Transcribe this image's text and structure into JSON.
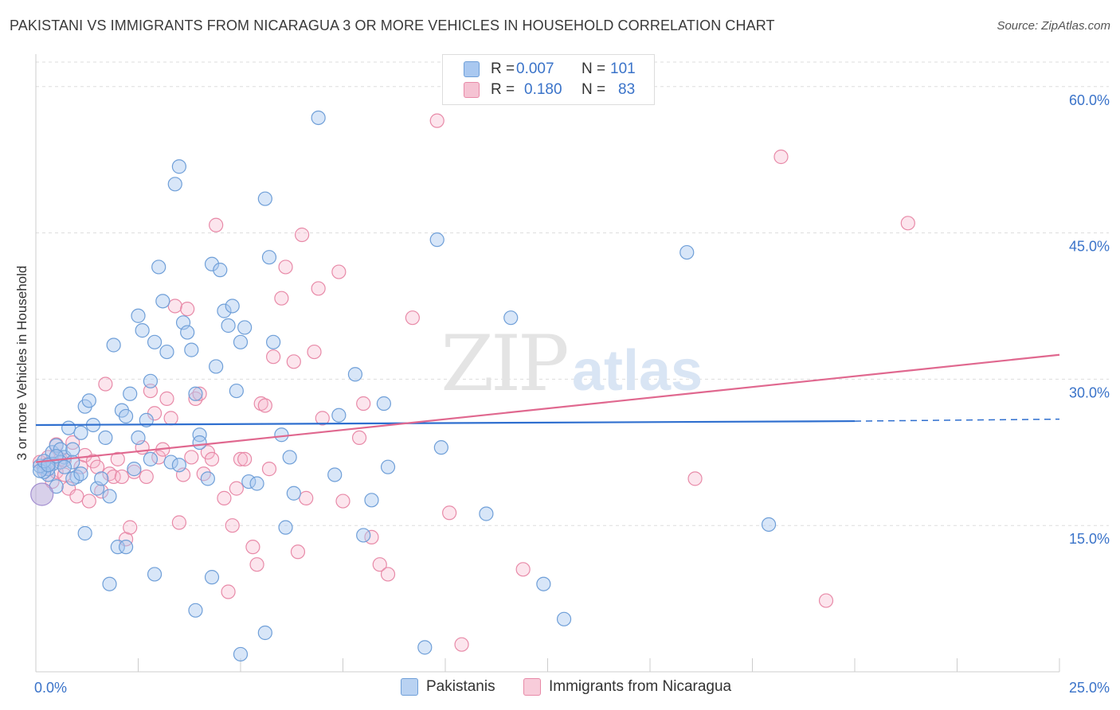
{
  "title": "PAKISTANI VS IMMIGRANTS FROM NICARAGUA 3 OR MORE VEHICLES IN HOUSEHOLD CORRELATION CHART",
  "source": "Source: ZipAtlas.com",
  "watermark": {
    "zip": "ZIP",
    "atlas": "atlas"
  },
  "legend_top": [
    {
      "r_label": "R =",
      "r_value": "0.007",
      "n_label": "N =",
      "n_value": "101"
    },
    {
      "r_label": "R =",
      "r_value": "0.180",
      "n_label": "N =",
      "n_value": "83"
    }
  ],
  "legend_bottom": [
    "Pakistanis",
    "Immigrants from Nicaragua"
  ],
  "colors": {
    "blue_fill": "#a9c8f0",
    "blue_stroke": "#6f9fd8",
    "blue_line": "#2f6fcf",
    "pink_fill": "#f5b5ca",
    "pink_stroke": "#e88aa8",
    "pink_line": "#e0688f",
    "tick_text": "#3a73c9",
    "grid": "#dddddd"
  },
  "chart_data": {
    "type": "scatter",
    "title": "PAKISTANI VS IMMIGRANTS FROM NICARAGUA 3 OR MORE VEHICLES IN HOUSEHOLD CORRELATION CHART",
    "xlabel": "",
    "ylabel": "3 or more Vehicles in Household",
    "xlim": [
      0,
      25
    ],
    "ylim": [
      0,
      63
    ],
    "x_tick_labels": [
      "0.0%",
      "25.0%"
    ],
    "y_ticks": [
      15,
      30,
      45,
      60
    ],
    "y_tick_labels": [
      "15.0%",
      "30.0%",
      "45.0%",
      "60.0%"
    ],
    "series": [
      {
        "name": "Pakistanis",
        "r": 0.007,
        "n": 101,
        "trend": {
          "x": [
            0,
            20,
            25
          ],
          "y": [
            25.3,
            25.7,
            25.9
          ],
          "solid_until": 20
        },
        "points": [
          [
            0.2,
            21.0
          ],
          [
            0.3,
            20.2
          ],
          [
            0.4,
            22.5
          ],
          [
            0.5,
            23.2
          ],
          [
            0.6,
            22.8
          ],
          [
            0.7,
            22.0
          ],
          [
            0.8,
            25.0
          ],
          [
            0.9,
            21.5
          ],
          [
            1.0,
            20.0
          ],
          [
            1.1,
            24.5
          ],
          [
            1.2,
            27.2
          ],
          [
            1.3,
            27.8
          ],
          [
            1.4,
            25.3
          ],
          [
            1.5,
            18.8
          ],
          [
            1.6,
            19.8
          ],
          [
            1.7,
            24.0
          ],
          [
            1.8,
            18.0
          ],
          [
            1.9,
            33.5
          ],
          [
            2.0,
            12.8
          ],
          [
            2.1,
            26.8
          ],
          [
            2.2,
            26.2
          ],
          [
            2.3,
            28.5
          ],
          [
            2.4,
            20.8
          ],
          [
            2.5,
            24.0
          ],
          [
            2.5,
            36.5
          ],
          [
            2.6,
            35.0
          ],
          [
            2.7,
            25.8
          ],
          [
            2.8,
            21.8
          ],
          [
            2.8,
            29.8
          ],
          [
            2.9,
            33.8
          ],
          [
            3.0,
            41.5
          ],
          [
            3.1,
            38.0
          ],
          [
            3.2,
            32.8
          ],
          [
            3.3,
            21.5
          ],
          [
            3.4,
            50.0
          ],
          [
            3.5,
            51.8
          ],
          [
            3.6,
            35.8
          ],
          [
            3.7,
            34.8
          ],
          [
            3.8,
            33.0
          ],
          [
            3.9,
            28.5
          ],
          [
            4.0,
            24.3
          ],
          [
            4.0,
            23.5
          ],
          [
            4.2,
            19.8
          ],
          [
            4.3,
            41.8
          ],
          [
            4.4,
            31.3
          ],
          [
            4.5,
            41.2
          ],
          [
            4.6,
            37.0
          ],
          [
            4.7,
            35.5
          ],
          [
            4.8,
            37.5
          ],
          [
            4.9,
            28.8
          ],
          [
            5.0,
            33.8
          ],
          [
            5.1,
            35.3
          ],
          [
            5.2,
            19.5
          ],
          [
            5.4,
            19.3
          ],
          [
            5.6,
            48.5
          ],
          [
            5.7,
            42.5
          ],
          [
            5.8,
            33.8
          ],
          [
            6.0,
            24.3
          ],
          [
            6.1,
            14.8
          ],
          [
            6.2,
            22.0
          ],
          [
            6.3,
            18.3
          ],
          [
            6.9,
            56.8
          ],
          [
            7.3,
            20.2
          ],
          [
            7.4,
            26.3
          ],
          [
            7.8,
            30.5
          ],
          [
            8.0,
            14.0
          ],
          [
            8.2,
            17.6
          ],
          [
            8.5,
            27.5
          ],
          [
            8.6,
            21.0
          ],
          [
            9.5,
            2.5
          ],
          [
            9.8,
            44.3
          ],
          [
            9.9,
            23.0
          ],
          [
            11.0,
            16.2
          ],
          [
            11.6,
            36.3
          ],
          [
            12.4,
            9.0
          ],
          [
            12.9,
            5.4
          ],
          [
            15.9,
            43.0
          ],
          [
            17.9,
            15.1
          ],
          [
            1.2,
            14.2
          ],
          [
            1.8,
            9.0
          ],
          [
            2.2,
            12.8
          ],
          [
            2.9,
            10.0
          ],
          [
            3.5,
            21.2
          ],
          [
            3.9,
            6.3
          ],
          [
            4.3,
            9.7
          ],
          [
            5.0,
            1.8
          ],
          [
            5.6,
            4.0
          ],
          [
            0.9,
            22.8
          ],
          [
            0.6,
            21.5
          ],
          [
            0.4,
            21.3
          ],
          [
            0.3,
            20.8
          ],
          [
            0.2,
            20.5
          ],
          [
            0.1,
            21.1
          ],
          [
            0.1,
            20.6
          ],
          [
            0.2,
            21.6
          ],
          [
            0.3,
            21.2
          ],
          [
            0.5,
            22.1
          ],
          [
            0.7,
            21.0
          ],
          [
            0.9,
            19.8
          ],
          [
            1.1,
            20.3
          ],
          [
            0.5,
            19.0
          ]
        ],
        "big_points": [
          [
            0.15,
            18.2
          ]
        ]
      },
      {
        "name": "Immigrants from Nicaragua",
        "r": 0.18,
        "n": 83,
        "trend": {
          "x": [
            0,
            25
          ],
          "y": [
            21.5,
            32.5
          ]
        },
        "points": [
          [
            0.1,
            21.5
          ],
          [
            0.2,
            20.8
          ],
          [
            0.3,
            22.0
          ],
          [
            0.4,
            19.5
          ],
          [
            0.5,
            20.5
          ],
          [
            0.6,
            21.8
          ],
          [
            0.7,
            20.2
          ],
          [
            0.8,
            18.8
          ],
          [
            0.9,
            23.5
          ],
          [
            1.0,
            18.0
          ],
          [
            1.1,
            21.0
          ],
          [
            1.2,
            22.2
          ],
          [
            1.3,
            17.5
          ],
          [
            1.4,
            21.6
          ],
          [
            1.5,
            21.0
          ],
          [
            1.6,
            18.5
          ],
          [
            1.7,
            29.5
          ],
          [
            1.8,
            20.3
          ],
          [
            1.9,
            20.0
          ],
          [
            2.0,
            21.8
          ],
          [
            2.1,
            20.0
          ],
          [
            2.2,
            13.6
          ],
          [
            2.3,
            14.8
          ],
          [
            2.4,
            20.5
          ],
          [
            2.6,
            23.0
          ],
          [
            2.7,
            20.0
          ],
          [
            2.8,
            28.8
          ],
          [
            2.9,
            26.5
          ],
          [
            3.0,
            22.0
          ],
          [
            3.1,
            22.8
          ],
          [
            3.2,
            28.0
          ],
          [
            3.3,
            26.0
          ],
          [
            3.4,
            37.5
          ],
          [
            3.5,
            15.3
          ],
          [
            3.6,
            20.2
          ],
          [
            3.7,
            37.2
          ],
          [
            3.8,
            22.0
          ],
          [
            3.9,
            28.0
          ],
          [
            4.0,
            28.5
          ],
          [
            4.1,
            20.3
          ],
          [
            4.2,
            22.5
          ],
          [
            4.3,
            21.8
          ],
          [
            4.4,
            45.8
          ],
          [
            4.6,
            17.8
          ],
          [
            4.7,
            8.2
          ],
          [
            4.8,
            15.0
          ],
          [
            4.9,
            18.8
          ],
          [
            5.0,
            21.8
          ],
          [
            5.1,
            21.8
          ],
          [
            5.3,
            12.8
          ],
          [
            5.4,
            11.0
          ],
          [
            5.5,
            27.5
          ],
          [
            5.6,
            27.3
          ],
          [
            5.7,
            20.8
          ],
          [
            5.8,
            32.3
          ],
          [
            6.0,
            38.3
          ],
          [
            6.1,
            41.5
          ],
          [
            6.3,
            31.8
          ],
          [
            6.4,
            12.3
          ],
          [
            6.5,
            44.8
          ],
          [
            6.6,
            17.8
          ],
          [
            6.8,
            32.8
          ],
          [
            6.9,
            39.3
          ],
          [
            7.0,
            26.0
          ],
          [
            7.4,
            41.0
          ],
          [
            7.5,
            17.5
          ],
          [
            7.9,
            24.0
          ],
          [
            8.0,
            27.5
          ],
          [
            8.2,
            13.8
          ],
          [
            8.4,
            11.0
          ],
          [
            8.6,
            10.0
          ],
          [
            9.2,
            36.3
          ],
          [
            9.8,
            56.5
          ],
          [
            10.1,
            16.3
          ],
          [
            10.4,
            2.8
          ],
          [
            11.9,
            10.5
          ],
          [
            16.1,
            19.8
          ],
          [
            18.2,
            52.8
          ],
          [
            19.3,
            7.3
          ],
          [
            21.3,
            46.0
          ],
          [
            0.3,
            21.3
          ],
          [
            0.5,
            23.3
          ],
          [
            0.7,
            21.7
          ]
        ],
        "big_points": []
      }
    ]
  }
}
